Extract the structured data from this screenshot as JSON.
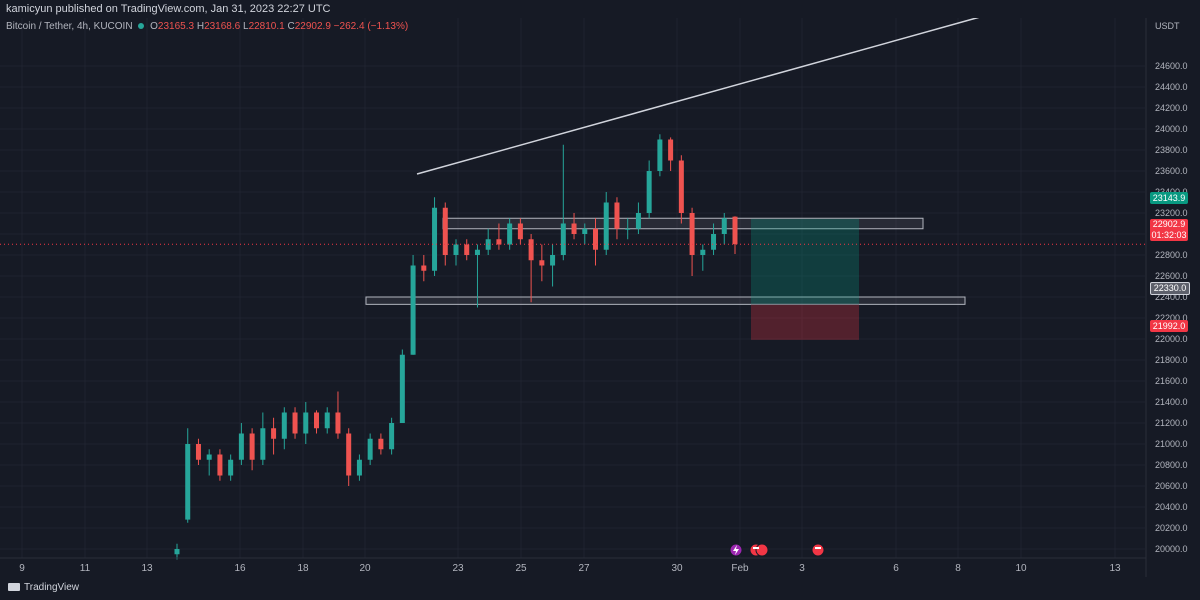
{
  "header": {
    "publisher": "kamicyun published on TradingView.com, Jan 31, 2023 22:27 UTC"
  },
  "legend": {
    "symbol": "Bitcoin / Tether, 4h, KUCOIN",
    "open_label": "O",
    "open": "23165.3",
    "high_label": "H",
    "high": "23168.6",
    "low_label": "L",
    "low": "22810.1",
    "close_label": "C",
    "close": "22902.9",
    "change": "−262.4 (−1.13%)"
  },
  "price_axis": {
    "unit": "USDT",
    "ticks": [
      "24600.0",
      "24400.0",
      "24200.0",
      "24000.0",
      "23800.0",
      "23600.0",
      "23400.0",
      "23200.0",
      "23000.0",
      "22800.0",
      "22600.0",
      "22400.0",
      "22200.0",
      "22000.0",
      "21800.0",
      "21600.0",
      "21400.0",
      "21200.0",
      "21000.0",
      "20800.0",
      "20600.0",
      "20400.0",
      "20200.0",
      "20000.0"
    ],
    "tag_upper": "23143.9",
    "tag_last": "22902.9",
    "tag_timer": "01:32:03",
    "tag_level": "22330.0",
    "tag_stop": "21992.0"
  },
  "time_axis": {
    "ticks": [
      "9",
      "11",
      "13",
      "16",
      "18",
      "20",
      "23",
      "25",
      "27",
      "30",
      "Feb",
      "3",
      "6",
      "8",
      "10",
      "13"
    ]
  },
  "footer": {
    "brand": "TradingView"
  },
  "colors": {
    "up": "#26a69a",
    "down": "#ef5350",
    "bg": "#161a25"
  },
  "chart_data": {
    "type": "candlestick",
    "title": "Bitcoin / Tether, 4h, KUCOIN",
    "ylim": [
      19950,
      24750
    ],
    "x_ticks": [
      "9",
      "11",
      "13",
      "16",
      "18",
      "20",
      "23",
      "25",
      "27",
      "30",
      "Feb",
      "3",
      "6",
      "8",
      "10",
      "13"
    ],
    "candles": [
      {
        "o": 19950,
        "h": 20050,
        "l": 19900,
        "c": 20000
      },
      {
        "o": 20280,
        "h": 21150,
        "l": 20250,
        "c": 21000
      },
      {
        "o": 21000,
        "h": 21050,
        "l": 20800,
        "c": 20850
      },
      {
        "o": 20850,
        "h": 20950,
        "l": 20700,
        "c": 20900
      },
      {
        "o": 20900,
        "h": 20950,
        "l": 20650,
        "c": 20700
      },
      {
        "o": 20700,
        "h": 20900,
        "l": 20650,
        "c": 20850
      },
      {
        "o": 20850,
        "h": 21200,
        "l": 20800,
        "c": 21100
      },
      {
        "o": 21100,
        "h": 21150,
        "l": 20750,
        "c": 20850
      },
      {
        "o": 20850,
        "h": 21300,
        "l": 20800,
        "c": 21150
      },
      {
        "o": 21150,
        "h": 21250,
        "l": 20900,
        "c": 21050
      },
      {
        "o": 21050,
        "h": 21350,
        "l": 20950,
        "c": 21300
      },
      {
        "o": 21300,
        "h": 21350,
        "l": 21050,
        "c": 21100
      },
      {
        "o": 21100,
        "h": 21400,
        "l": 21000,
        "c": 21300
      },
      {
        "o": 21300,
        "h": 21320,
        "l": 21100,
        "c": 21150
      },
      {
        "o": 21150,
        "h": 21350,
        "l": 21100,
        "c": 21300
      },
      {
        "o": 21300,
        "h": 21500,
        "l": 21050,
        "c": 21100
      },
      {
        "o": 21100,
        "h": 21150,
        "l": 20600,
        "c": 20700
      },
      {
        "o": 20700,
        "h": 20900,
        "l": 20650,
        "c": 20850
      },
      {
        "o": 20850,
        "h": 21100,
        "l": 20800,
        "c": 21050
      },
      {
        "o": 21050,
        "h": 21100,
        "l": 20900,
        "c": 20950
      },
      {
        "o": 20950,
        "h": 21250,
        "l": 20900,
        "c": 21200
      },
      {
        "o": 21200,
        "h": 21900,
        "l": 21200,
        "c": 21850
      },
      {
        "o": 21850,
        "h": 22800,
        "l": 21850,
        "c": 22700
      },
      {
        "o": 22700,
        "h": 22800,
        "l": 22550,
        "c": 22650
      },
      {
        "o": 22650,
        "h": 23350,
        "l": 22600,
        "c": 23250
      },
      {
        "o": 23250,
        "h": 23300,
        "l": 22700,
        "c": 22800
      },
      {
        "o": 22800,
        "h": 22950,
        "l": 22700,
        "c": 22900
      },
      {
        "o": 22900,
        "h": 22950,
        "l": 22750,
        "c": 22800
      },
      {
        "o": 22800,
        "h": 22900,
        "l": 22300,
        "c": 22850
      },
      {
        "o": 22850,
        "h": 23050,
        "l": 22800,
        "c": 22950
      },
      {
        "o": 22950,
        "h": 23100,
        "l": 22850,
        "c": 22900
      },
      {
        "o": 22900,
        "h": 23150,
        "l": 22850,
        "c": 23100
      },
      {
        "o": 23100,
        "h": 23150,
        "l": 22900,
        "c": 22950
      },
      {
        "o": 22950,
        "h": 23000,
        "l": 22350,
        "c": 22750
      },
      {
        "o": 22750,
        "h": 22900,
        "l": 22550,
        "c": 22700
      },
      {
        "o": 22700,
        "h": 22900,
        "l": 22500,
        "c": 22800
      },
      {
        "o": 22800,
        "h": 23850,
        "l": 22750,
        "c": 23100
      },
      {
        "o": 23100,
        "h": 23200,
        "l": 22950,
        "c": 23000
      },
      {
        "o": 23000,
        "h": 23100,
        "l": 22900,
        "c": 23050
      },
      {
        "o": 23050,
        "h": 23150,
        "l": 22700,
        "c": 22850
      },
      {
        "o": 22850,
        "h": 23400,
        "l": 22800,
        "c": 23300
      },
      {
        "o": 23300,
        "h": 23350,
        "l": 22950,
        "c": 23050
      },
      {
        "o": 23050,
        "h": 23150,
        "l": 22950,
        "c": 23050
      },
      {
        "o": 23050,
        "h": 23300,
        "l": 23000,
        "c": 23200
      },
      {
        "o": 23200,
        "h": 23700,
        "l": 23150,
        "c": 23600
      },
      {
        "o": 23600,
        "h": 23950,
        "l": 23550,
        "c": 23900
      },
      {
        "o": 23900,
        "h": 23920,
        "l": 23600,
        "c": 23700
      },
      {
        "o": 23700,
        "h": 23750,
        "l": 23100,
        "c": 23200
      },
      {
        "o": 23200,
        "h": 23250,
        "l": 22600,
        "c": 22800
      },
      {
        "o": 22800,
        "h": 22900,
        "l": 22650,
        "c": 22850
      },
      {
        "o": 22850,
        "h": 23100,
        "l": 22800,
        "c": 23000
      },
      {
        "o": 23000,
        "h": 23200,
        "l": 22900,
        "c": 23150
      },
      {
        "o": 23165.3,
        "h": 23168.6,
        "l": 22810.1,
        "c": 22902.9
      }
    ],
    "zones": [
      {
        "label": "upper-range",
        "low": 23050,
        "high": 23150
      },
      {
        "label": "lower-range",
        "low": 22330,
        "high": 22400
      }
    ],
    "position": {
      "entry": 22330.0,
      "target": 23143.9,
      "stop": 21992.0
    },
    "last_price": 22902.9
  }
}
